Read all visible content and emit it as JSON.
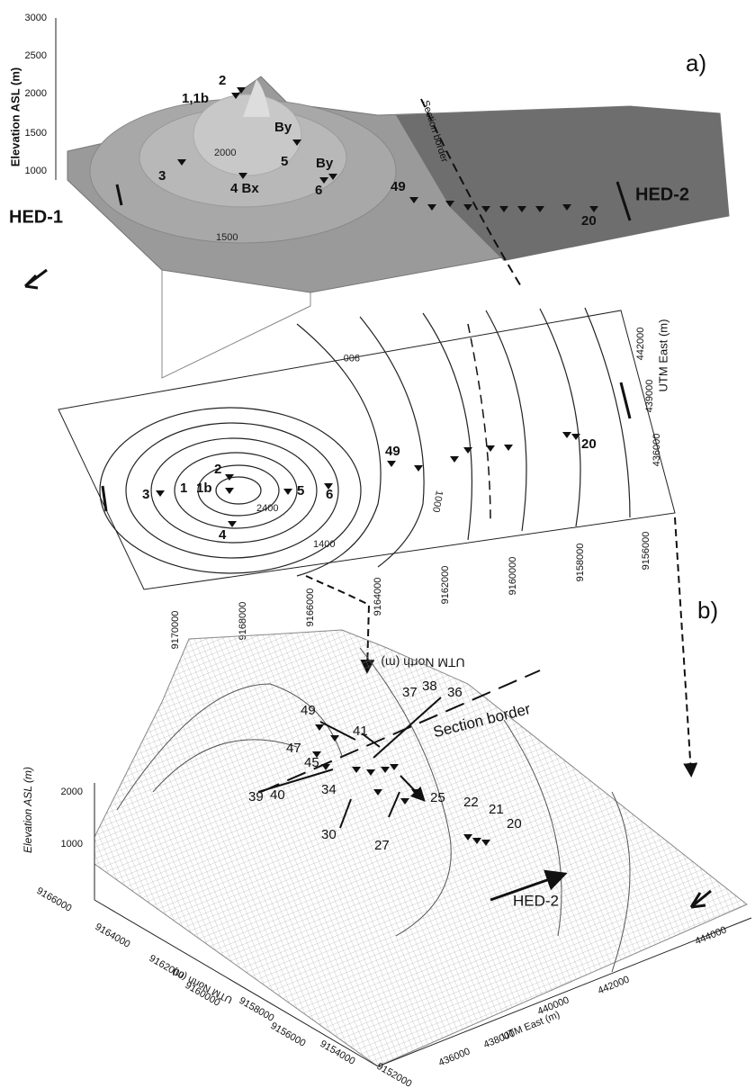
{
  "panel_a": {
    "label": "a)",
    "y_axis_title": "Elevation ASL (m)",
    "y_ticks": [
      3000,
      2500,
      2000,
      1500,
      1000
    ],
    "stations": [
      "2",
      "1,1b",
      "By",
      "5",
      "By",
      "3",
      "4 Bx",
      "6",
      "49",
      "20"
    ],
    "contour_labels": [
      2000,
      1500
    ],
    "hed_left": "HED-1",
    "hed_right": "HED-2",
    "section_border": "Section border"
  },
  "map": {
    "stations": [
      "49",
      "20",
      "2",
      "1",
      "1b",
      "3",
      "5",
      "6",
      "4"
    ],
    "contour_labels": [
      900,
      1000,
      1400,
      2400
    ],
    "east_title": "UTM East (m)",
    "east_ticks": [
      442000,
      439000,
      436000
    ],
    "north_title": "UTM North (m)",
    "north_ticks": [
      9170000,
      9168000,
      9166000,
      9164000,
      9162000,
      9160000,
      9158000,
      9156000
    ],
    "label": "b)"
  },
  "panel_b": {
    "y_axis_title": "Elevation ASL (m)",
    "y_ticks": [
      2000,
      1000
    ],
    "stations": [
      "49",
      "47",
      "45",
      "41",
      "37",
      "38",
      "36",
      "39",
      "40",
      "34",
      "30",
      "27",
      "25",
      "22",
      "21",
      "20"
    ],
    "section_border": "Section border",
    "hed": "HED-2",
    "north_title": "UTM North (m)",
    "north_ticks": [
      9166000,
      9164000,
      9162000,
      9160000,
      9158000,
      9156000,
      9154000,
      9152000
    ],
    "east_title": "UTM East (m)",
    "east_ticks": [
      436000,
      438000,
      440000,
      442000,
      444000
    ]
  }
}
